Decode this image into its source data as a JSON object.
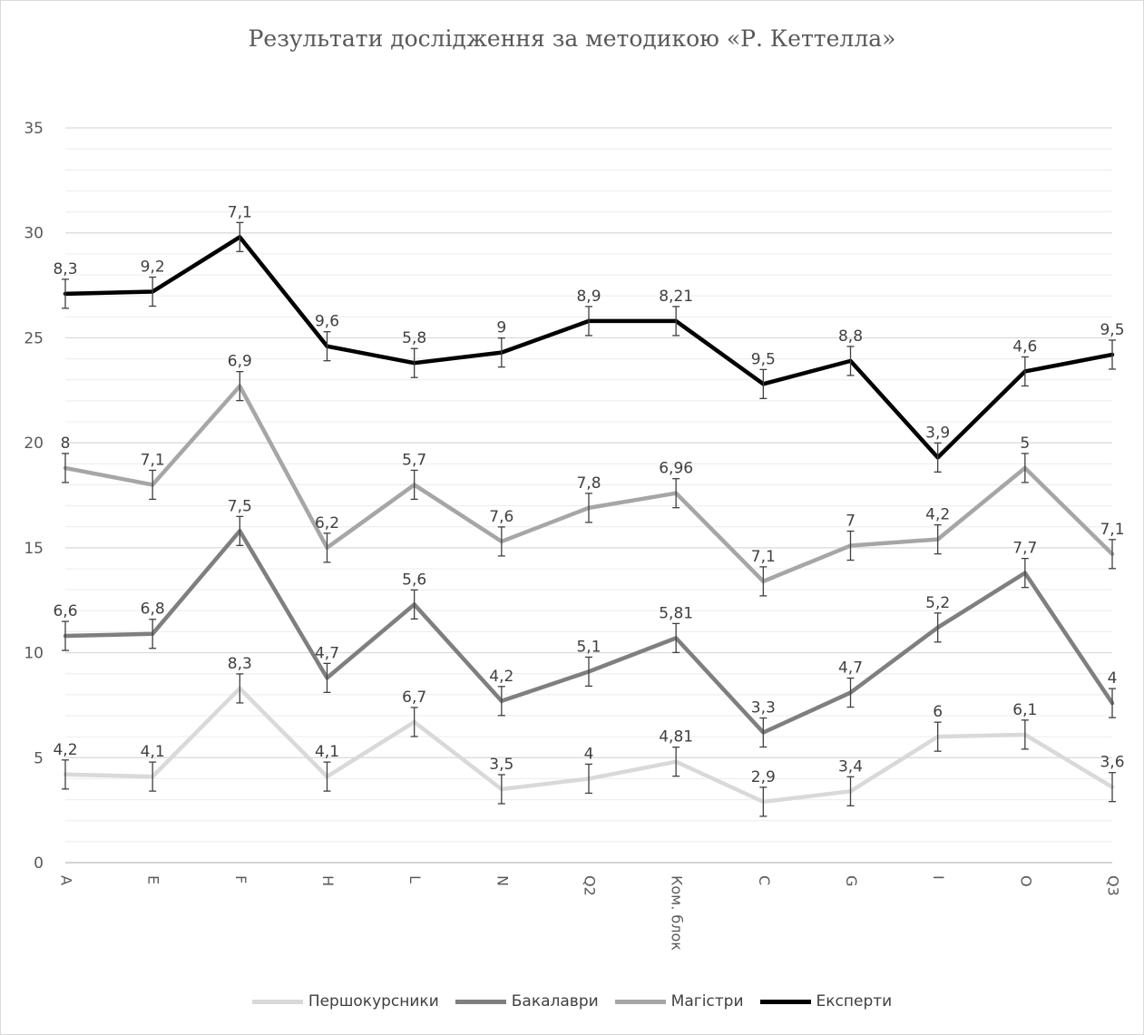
{
  "chart_data": {
    "type": "line",
    "title": "Результати дослідження за методикою «Р. Кеттелла»",
    "categories": [
      "A",
      "E",
      "F",
      "H",
      "L",
      "N",
      "Q2",
      "Ком. блок",
      "C",
      "G",
      "I",
      "O",
      "Q3"
    ],
    "ylim": [
      0,
      35
    ],
    "yticks": [
      "0",
      "5",
      "10",
      "15",
      "20",
      "25",
      "30",
      "35"
    ],
    "error_bars": true,
    "grid": true,
    "legend_position": "bottom",
    "series": [
      {
        "name": "Першокурсники",
        "color": "#d9d9d9",
        "values": [
          4.2,
          4.1,
          8.3,
          4.1,
          6.7,
          3.5,
          4.0,
          4.81,
          2.9,
          3.4,
          6.0,
          6.1,
          3.6
        ],
        "labels": [
          "4,2",
          "4,1",
          "8,3",
          "4,1",
          "6,7",
          "3,5",
          "4",
          "4,81",
          "2,9",
          "3,4",
          "6",
          "6,1",
          "3,6"
        ]
      },
      {
        "name": "Бакалаври",
        "color": "#7f7f7f",
        "values": [
          10.8,
          10.9,
          15.8,
          8.8,
          12.3,
          7.7,
          9.1,
          10.7,
          6.2,
          8.1,
          11.2,
          13.8,
          7.6
        ],
        "labels": [
          "6,6",
          "6,8",
          "7,5",
          "4,7",
          "5,6",
          "4,2",
          "5,1",
          "5,81",
          "3,3",
          "4,7",
          "5,2",
          "7,7",
          "4"
        ]
      },
      {
        "name": "Магістри",
        "color": "#a6a6a6",
        "values": [
          18.8,
          18.0,
          22.7,
          15.0,
          18.0,
          15.3,
          16.9,
          17.6,
          13.4,
          15.1,
          15.4,
          18.8,
          14.7
        ],
        "labels": [
          "8",
          "7,1",
          "6,9",
          "6,2",
          "5,7",
          "7,6",
          "7,8",
          "6,96",
          "7,1",
          "7",
          "4,2",
          "5",
          "7,1"
        ]
      },
      {
        "name": "Експерти",
        "color": "#000000",
        "values": [
          27.1,
          27.2,
          29.8,
          24.6,
          23.8,
          24.3,
          25.8,
          25.8,
          22.8,
          23.9,
          19.3,
          23.4,
          24.2
        ],
        "labels": [
          "8,3",
          "9,2",
          "7,1",
          "9,6",
          "5,8",
          "9",
          "8,9",
          "8,21",
          "9,5",
          "8,8",
          "3,9",
          "4,6",
          "9,5"
        ]
      }
    ]
  }
}
